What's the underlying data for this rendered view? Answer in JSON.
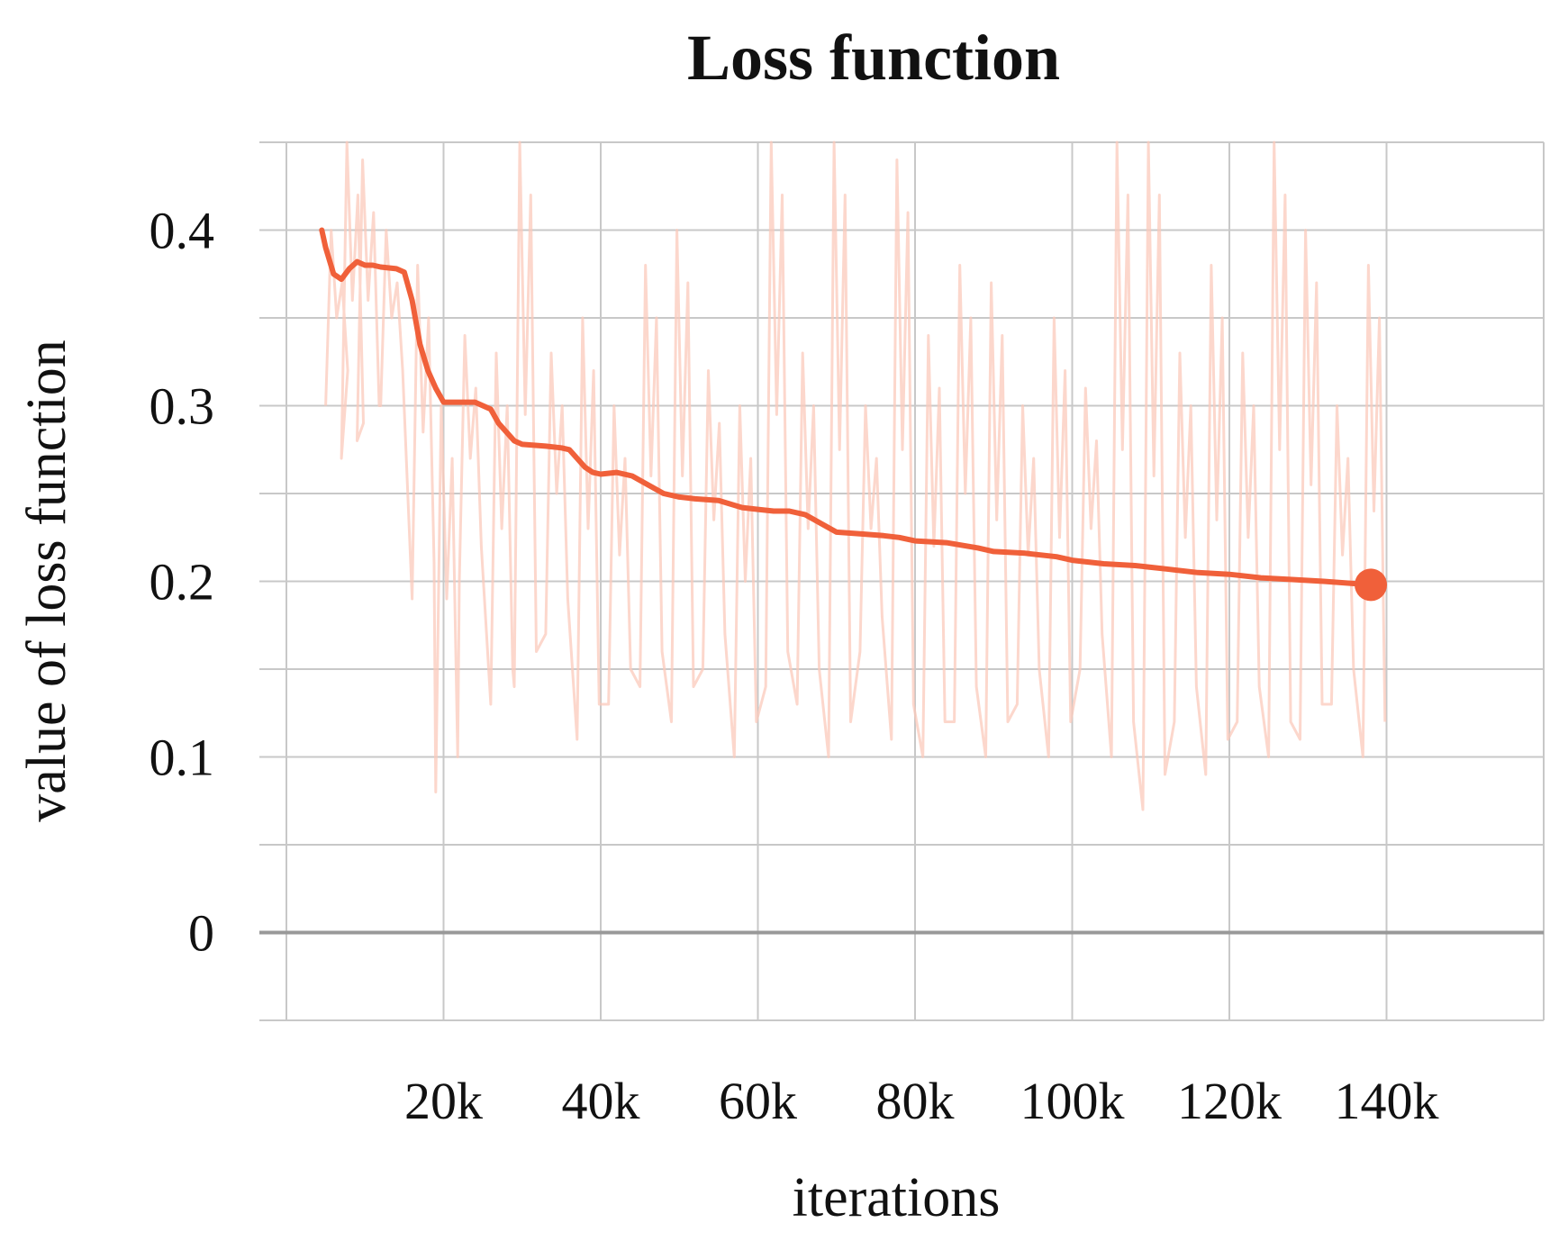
{
  "chart_data": {
    "type": "line",
    "title": "Loss function",
    "xlabel": "iterations",
    "ylabel": "value of loss function",
    "xlim": [
      0,
      160000
    ],
    "ylim": [
      -0.05,
      0.45
    ],
    "x_ticks": [
      20000,
      40000,
      60000,
      80000,
      100000,
      120000,
      140000
    ],
    "x_tick_labels": [
      "20k",
      "40k",
      "60k",
      "80k",
      "100k",
      "120k",
      "140k"
    ],
    "y_ticks": [
      0,
      0.1,
      0.2,
      0.3,
      0.4
    ],
    "y_tick_labels": [
      "0",
      "0.1",
      "0.2",
      "0.3",
      "0.4"
    ],
    "grid": true,
    "legend": "none",
    "colors": {
      "smoothed": "#f0603a",
      "raw": "#fbc9bb",
      "grid": "#c8c8c8",
      "zero_line": "#999999"
    },
    "series": [
      {
        "x": [
          4500,
          5000,
          6000,
          7000,
          8000,
          9000,
          10000,
          11000,
          12000,
          14000,
          15000,
          16000,
          17000,
          18000,
          19000,
          20000,
          22000,
          24000,
          26000,
          27000,
          28000,
          29000,
          30000,
          33000,
          35000,
          36000,
          37000,
          38000,
          39000,
          40000,
          42000,
          44000,
          46000,
          48000,
          50000,
          52000,
          55000,
          58000,
          60000,
          62000,
          64000,
          66000,
          68000,
          70000,
          73000,
          76000,
          78000,
          80000,
          84000,
          88000,
          90000,
          94000,
          98000,
          100000,
          104000,
          108000,
          112000,
          116000,
          120000,
          124000,
          128000,
          132000,
          138000
        ],
        "y": [
          0.4,
          0.39,
          0.375,
          0.372,
          0.378,
          0.382,
          0.38,
          0.38,
          0.379,
          0.378,
          0.376,
          0.36,
          0.335,
          0.32,
          0.31,
          0.302,
          0.302,
          0.302,
          0.298,
          0.29,
          0.285,
          0.28,
          0.278,
          0.277,
          0.276,
          0.275,
          0.27,
          0.265,
          0.262,
          0.261,
          0.262,
          0.26,
          0.255,
          0.25,
          0.248,
          0.247,
          0.246,
          0.242,
          0.241,
          0.24,
          0.24,
          0.238,
          0.233,
          0.228,
          0.227,
          0.226,
          0.225,
          0.223,
          0.222,
          0.219,
          0.217,
          0.216,
          0.214,
          0.212,
          0.21,
          0.209,
          0.207,
          0.205,
          0.204,
          0.202,
          0.201,
          0.2,
          0.198
        ]
      }
    ],
    "raw_noise_band": {
      "x": [
        5000,
        7000,
        9000,
        12000,
        16000,
        19000,
        22000,
        26000,
        29000,
        33000,
        37000,
        41000,
        45000,
        49000,
        53000,
        57000,
        61000,
        65000,
        69000,
        73000,
        77000,
        81000,
        85000,
        89000,
        93000,
        97000,
        101000,
        105000,
        109000,
        113000,
        117000,
        121000,
        125000,
        129000,
        133000,
        137000
      ],
      "low": [
        0.3,
        0.27,
        0.28,
        0.3,
        0.19,
        0.08,
        0.2,
        0.13,
        0.14,
        0.17,
        0.11,
        0.13,
        0.14,
        0.12,
        0.15,
        0.1,
        0.14,
        0.13,
        0.1,
        0.16,
        0.11,
        0.1,
        0.12,
        0.1,
        0.13,
        0.1,
        0.15,
        0.1,
        0.07,
        0.12,
        0.09,
        0.12,
        0.1,
        0.11,
        0.13,
        0.1
      ],
      "high": [
        0.4,
        0.45,
        0.44,
        0.4,
        0.38,
        0.3,
        0.34,
        0.33,
        0.45,
        0.33,
        0.35,
        0.3,
        0.38,
        0.4,
        0.32,
        0.3,
        0.45,
        0.33,
        0.45,
        0.3,
        0.44,
        0.34,
        0.38,
        0.37,
        0.3,
        0.35,
        0.31,
        0.45,
        0.45,
        0.33,
        0.38,
        0.33,
        0.45,
        0.4,
        0.3,
        0.38
      ]
    },
    "end_marker": {
      "x": 138000,
      "y": 0.198
    }
  }
}
